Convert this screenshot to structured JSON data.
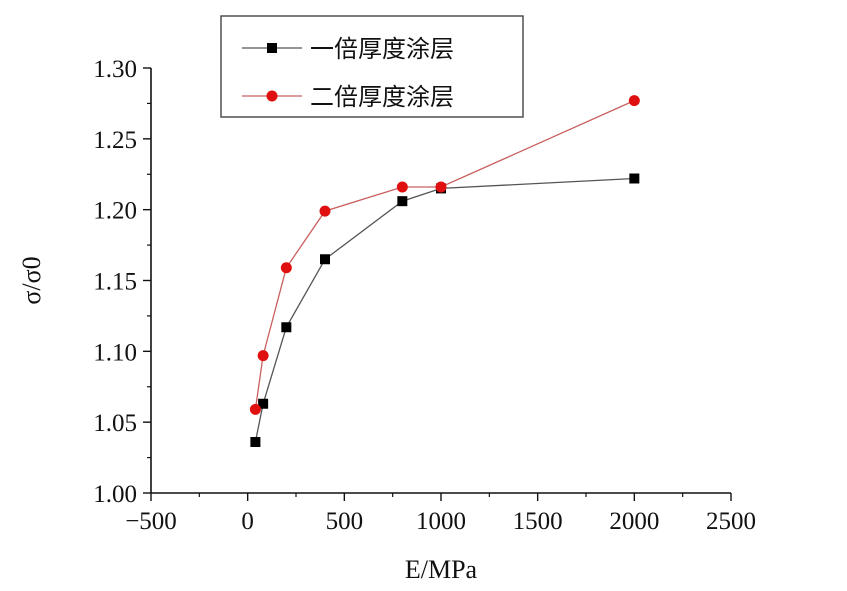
{
  "chart_data": {
    "type": "line",
    "xlabel": "E/MPa",
    "ylabel": "σ/σ0",
    "xlim": [
      -500,
      2500
    ],
    "ylim": [
      1.0,
      1.3
    ],
    "x_ticks": [
      -500,
      0,
      500,
      1000,
      1500,
      2000,
      2500
    ],
    "x_tick_labels": [
      "−500",
      "0",
      "500",
      "1000",
      "1500",
      "2000",
      "2500"
    ],
    "y_ticks": [
      1.0,
      1.05,
      1.1,
      1.15,
      1.2,
      1.25,
      1.3
    ],
    "y_tick_labels": [
      "1.00",
      "1.05",
      "1.10",
      "1.15",
      "1.20",
      "1.25",
      "1.30"
    ],
    "legend_position": "top",
    "grid": false,
    "series": [
      {
        "name": "一倍厚度涂层",
        "color": "#000000",
        "marker": "square",
        "x": [
          40,
          80,
          200,
          400,
          800,
          1000,
          2000
        ],
        "values": [
          1.036,
          1.063,
          1.117,
          1.165,
          1.206,
          1.215,
          1.222
        ]
      },
      {
        "name": "二倍厚度涂层",
        "color": "#e01010",
        "marker": "circle",
        "x": [
          40,
          80,
          200,
          400,
          800,
          1000,
          2000
        ],
        "values": [
          1.059,
          1.097,
          1.159,
          1.199,
          1.216,
          1.216,
          1.277
        ]
      }
    ]
  }
}
